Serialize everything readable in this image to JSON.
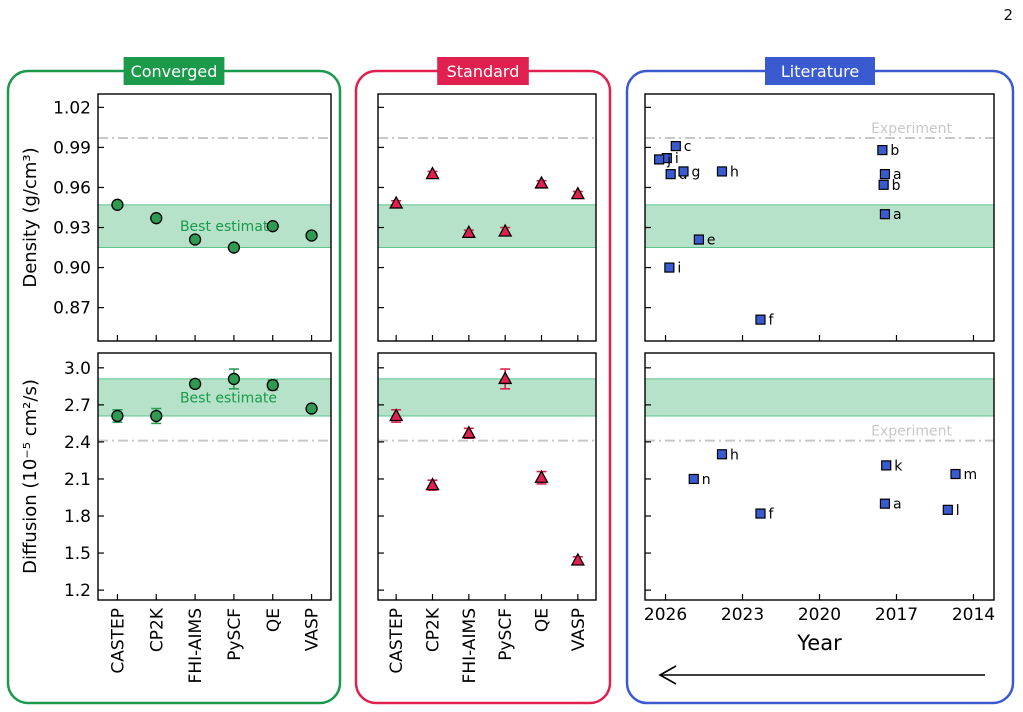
{
  "page_number": "2",
  "colors": {
    "converged": "#1a9a4a",
    "standard": "#e0204f",
    "literature": "#3a5bd0",
    "best_band": "#a8ddc0",
    "best_band_edge": "#5cc48a",
    "marker_green": "#2e9a54",
    "marker_red": "#e0204f",
    "marker_blue": "#3a5bd0",
    "experiment": "#c8c8c8",
    "best_text": "#1a9a4a"
  },
  "panels": {
    "converged": {
      "title": "Converged"
    },
    "standard": {
      "title": "Standard"
    },
    "literature": {
      "title": "Literature"
    }
  },
  "annotations": {
    "best_estimate": "Best estimate",
    "experiment": "Experiment",
    "arrow": "left-pointing arrow under Year axis"
  },
  "chart_data": [
    {
      "type": "scatter",
      "panel": "Converged",
      "ylabel": "Density (g/cm³)",
      "ylim": [
        0.845,
        1.03
      ],
      "yticks": [
        0.87,
        0.9,
        0.93,
        0.96,
        0.99,
        1.02
      ],
      "categories": [
        "CASTEP",
        "CP2K",
        "FHI-AIMS",
        "PySCF",
        "QE",
        "VASP"
      ],
      "values": [
        0.947,
        0.937,
        0.921,
        0.915,
        0.931,
        0.924
      ],
      "errors": [
        0.001,
        0.001,
        0.001,
        0.002,
        0.001,
        0.001
      ],
      "best_estimate_band": [
        0.915,
        0.947
      ],
      "experiment": 0.997,
      "show_experiment_label": false,
      "show_best_label": true
    },
    {
      "type": "scatter",
      "panel": "Converged",
      "ylabel": "Diffusion (10⁻⁵ cm²/s)",
      "ylim": [
        1.12,
        3.12
      ],
      "yticks": [
        1.2,
        1.5,
        1.8,
        2.1,
        2.4,
        2.7,
        3.0
      ],
      "categories": [
        "CASTEP",
        "CP2K",
        "FHI-AIMS",
        "PySCF",
        "QE",
        "VASP"
      ],
      "values": [
        2.61,
        2.61,
        2.87,
        2.91,
        2.86,
        2.67
      ],
      "errors": [
        0.05,
        0.06,
        0.03,
        0.08,
        0.04,
        0.02
      ],
      "best_estimate_band": [
        2.61,
        2.91
      ],
      "experiment": 2.41,
      "show_experiment_label": false,
      "show_best_label": true
    },
    {
      "type": "scatter",
      "panel": "Standard",
      "ylim": [
        0.845,
        1.03
      ],
      "categories": [
        "CASTEP",
        "CP2K",
        "FHI-AIMS",
        "PySCF",
        "QE",
        "VASP"
      ],
      "values": [
        0.948,
        0.97,
        0.926,
        0.927,
        0.963,
        0.955
      ],
      "errors": [
        0.002,
        0.002,
        0.002,
        0.003,
        0.002,
        0.002
      ],
      "best_estimate_band": [
        0.915,
        0.947
      ],
      "experiment": 0.997
    },
    {
      "type": "scatter",
      "panel": "Standard",
      "ylim": [
        1.12,
        3.12
      ],
      "categories": [
        "CASTEP",
        "CP2K",
        "FHI-AIMS",
        "PySCF",
        "QE",
        "VASP"
      ],
      "values": [
        2.61,
        2.05,
        2.47,
        2.91,
        2.11,
        1.44
      ],
      "errors": [
        0.05,
        0.04,
        0.04,
        0.08,
        0.05,
        0.03
      ],
      "best_estimate_band": [
        2.61,
        2.91
      ],
      "experiment": 2.41
    },
    {
      "type": "scatter",
      "panel": "Literature",
      "xlabel": "Year",
      "xlim": [
        2026.8,
        2013.2
      ],
      "xticks": [
        2026,
        2023,
        2020,
        2017,
        2014
      ],
      "ylim": [
        0.845,
        1.03
      ],
      "best_estimate_band": [
        0.915,
        0.947
      ],
      "experiment": 0.997,
      "show_experiment_label": true,
      "points": [
        {
          "x": 2025.6,
          "y": 0.991,
          "label": "c"
        },
        {
          "x": 2025.95,
          "y": 0.982,
          "label": "i"
        },
        {
          "x": 2026.25,
          "y": 0.981,
          "label": "j"
        },
        {
          "x": 2025.8,
          "y": 0.97,
          "label": "d"
        },
        {
          "x": 2025.3,
          "y": 0.972,
          "label": "g"
        },
        {
          "x": 2023.8,
          "y": 0.972,
          "label": "h"
        },
        {
          "x": 2017.55,
          "y": 0.988,
          "label": "b"
        },
        {
          "x": 2017.45,
          "y": 0.97,
          "label": "a"
        },
        {
          "x": 2017.5,
          "y": 0.962,
          "label": "b"
        },
        {
          "x": 2017.45,
          "y": 0.94,
          "label": "a"
        },
        {
          "x": 2024.7,
          "y": 0.921,
          "label": "e"
        },
        {
          "x": 2025.85,
          "y": 0.9,
          "label": "i"
        },
        {
          "x": 2022.3,
          "y": 0.861,
          "label": "f"
        }
      ]
    },
    {
      "type": "scatter",
      "panel": "Literature",
      "xlabel": "Year",
      "xlim": [
        2026.8,
        2013.2
      ],
      "xticks": [
        2026,
        2023,
        2020,
        2017,
        2014
      ],
      "ylim": [
        1.12,
        3.12
      ],
      "best_estimate_band": [
        2.61,
        2.91
      ],
      "experiment": 2.41,
      "show_experiment_label": true,
      "points": [
        {
          "x": 2023.8,
          "y": 2.3,
          "label": "h"
        },
        {
          "x": 2024.9,
          "y": 2.1,
          "label": "n"
        },
        {
          "x": 2022.3,
          "y": 1.82,
          "label": "f"
        },
        {
          "x": 2017.4,
          "y": 2.21,
          "label": "k"
        },
        {
          "x": 2017.45,
          "y": 1.9,
          "label": "a"
        },
        {
          "x": 2014.7,
          "y": 2.14,
          "label": "m"
        },
        {
          "x": 2015.0,
          "y": 1.85,
          "label": "l"
        }
      ]
    }
  ]
}
